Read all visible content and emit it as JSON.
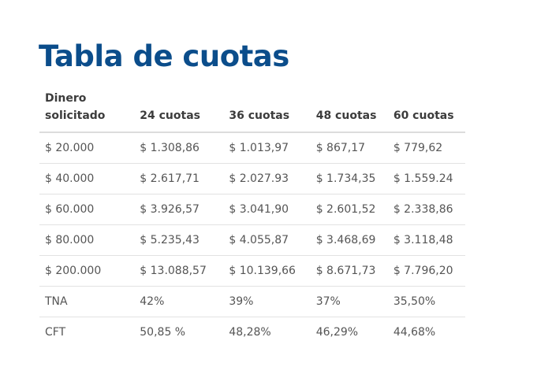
{
  "page": {
    "title": "Tabla de cuotas",
    "title_color": "#0b4d8b"
  },
  "table": {
    "headers": {
      "amount_line1": "Dinero",
      "amount_line2": "solicitado",
      "c24": "24 cuotas",
      "c36": "36 cuotas",
      "c48": "48 cuotas",
      "c60": "60 cuotas"
    },
    "rows": [
      {
        "label": "$ 20.000",
        "c24": "$ 1.308,86",
        "c36": "$ 1.013,97",
        "c48": "$ 867,17",
        "c60": "$ 779,62"
      },
      {
        "label": "$ 40.000",
        "c24": "$ 2.617,71",
        "c36": "$ 2.027.93",
        "c48": "$ 1.734,35",
        "c60": "$ 1.559.24"
      },
      {
        "label": "$ 60.000",
        "c24": "$ 3.926,57",
        "c36": "$ 3.041,90",
        "c48": "$ 2.601,52",
        "c60": "$ 2.338,86"
      },
      {
        "label": "$ 80.000",
        "c24": "$ 5.235,43",
        "c36": "$ 4.055,87",
        "c48": "$ 3.468,69",
        "c60": "$ 3.118,48"
      },
      {
        "label": "$ 200.000",
        "c24": "$ 13.088,57",
        "c36": "$ 10.139,66",
        "c48": "$ 8.671,73",
        "c60": "$ 7.796,20"
      },
      {
        "label": "TNA",
        "c24": "42%",
        "c36": "39%",
        "c48": "37%",
        "c60": "35,50%"
      },
      {
        "label": "CFT",
        "c24": "50,85 %",
        "c36": "48,28%",
        "c48": "46,29%",
        "c60": "44,68%"
      }
    ]
  }
}
